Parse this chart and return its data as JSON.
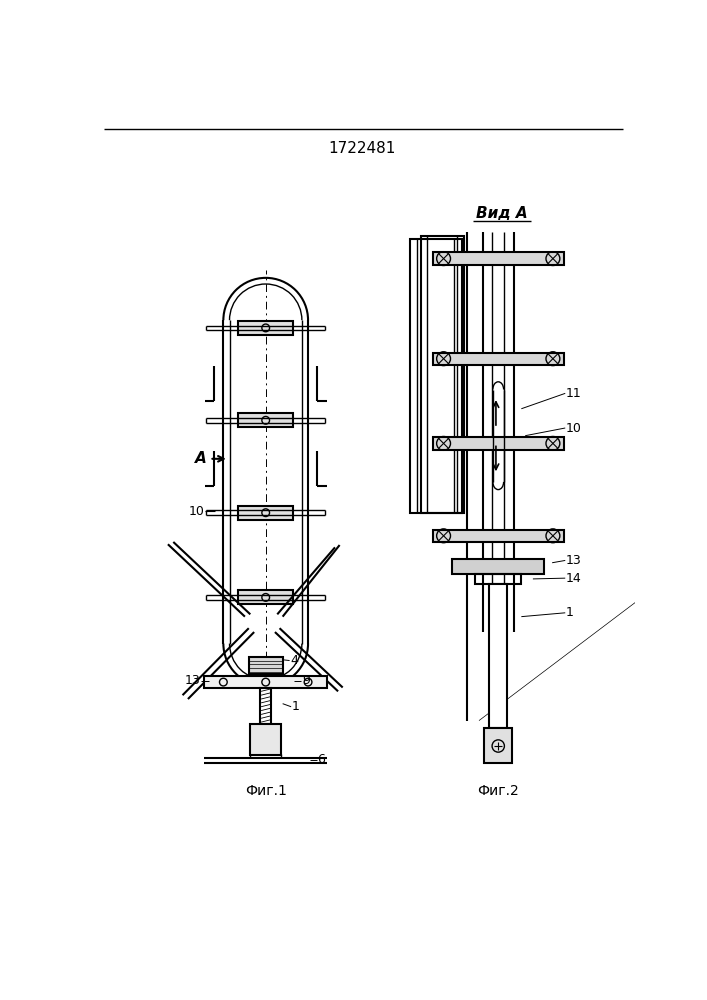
{
  "title": "1722481",
  "fig1_label": "Фиг.1",
  "fig2_label": "Фиг.2",
  "view_label": "Вид А",
  "bg_color": "#ffffff",
  "line_color": "#000000",
  "label_A": "А",
  "num_1": "1",
  "num_4": "4",
  "num_6": "6",
  "num_9": "9",
  "num_10": "10",
  "num_11": "11",
  "num_13": "13",
  "num_14": "14"
}
